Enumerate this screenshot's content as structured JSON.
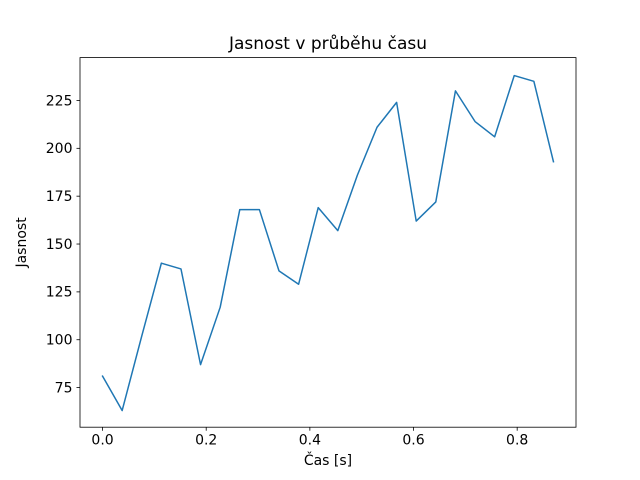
{
  "chart_data": {
    "type": "line",
    "title": "Jasnost v průběhu času",
    "xlabel": "Čas [s]",
    "ylabel": "Jasnost",
    "grid": false,
    "legend_position": "none",
    "line_color": "#1f77b4",
    "axis_color": "#000000",
    "background_color": "#ffffff",
    "xlim": [
      -0.0435,
      0.9135
    ],
    "ylim": [
      54.3,
      247.4
    ],
    "xticks": {
      "values": [
        0.0,
        0.2,
        0.4,
        0.6,
        0.8
      ],
      "labels": [
        "0.0",
        "0.2",
        "0.4",
        "0.6",
        "0.8"
      ]
    },
    "yticks": {
      "values": [
        75,
        100,
        125,
        150,
        175,
        200,
        225
      ],
      "labels": [
        "75",
        "100",
        "125",
        "150",
        "175",
        "200",
        "225"
      ]
    },
    "series": [
      {
        "name": "jasnost",
        "color": "#1f77b4",
        "x": [
          0.0,
          0.0378,
          0.0757,
          0.1135,
          0.1513,
          0.1891,
          0.227,
          0.2648,
          0.3026,
          0.3404,
          0.3783,
          0.4161,
          0.4539,
          0.4917,
          0.5296,
          0.5674,
          0.6052,
          0.643,
          0.6809,
          0.7187,
          0.7565,
          0.7943,
          0.8322,
          0.87
        ],
        "values": [
          81,
          63,
          102,
          140,
          137,
          87,
          117,
          168,
          168,
          136,
          129,
          169,
          157,
          186,
          211,
          224,
          162,
          172,
          230,
          214,
          206,
          238,
          235,
          193
        ]
      }
    ]
  }
}
